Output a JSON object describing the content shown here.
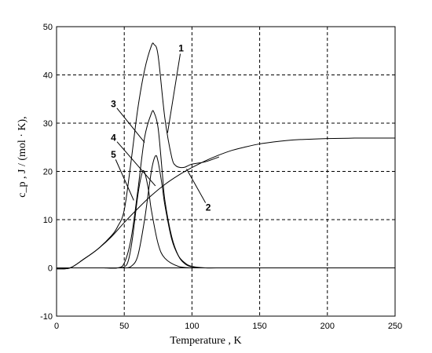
{
  "chart_data": {
    "type": "line",
    "title": "",
    "xlabel": "Temperature ,  K",
    "ylabel": "c_p ,  J / (mol · K),",
    "xlim": [
      0,
      250
    ],
    "ylim": [
      -10,
      50
    ],
    "x_ticks": [
      0,
      50,
      100,
      150,
      200,
      250
    ],
    "y_ticks": [
      -10,
      0,
      10,
      20,
      30,
      40,
      50
    ],
    "grid": true,
    "grid_style": "dashed",
    "legend": "none",
    "line_color": "#000000",
    "series": [
      {
        "label": "1",
        "x": [
          0,
          10,
          20,
          30,
          40,
          45,
          50,
          55,
          60,
          65,
          70,
          72,
          75,
          80,
          85,
          88,
          92,
          95,
          100,
          110,
          120
        ],
        "y": [
          -0.2,
          0,
          1.8,
          3.8,
          6.5,
          8.5,
          12,
          22,
          33,
          41,
          46,
          46.3,
          44,
          31,
          23,
          21.2,
          20.8,
          20.9,
          21.5,
          22,
          23
        ]
      },
      {
        "label": "2",
        "x": [
          0,
          10,
          20,
          30,
          40,
          50,
          60,
          70,
          80,
          90,
          100,
          110,
          120,
          130,
          140,
          150,
          160,
          170,
          180,
          190,
          200,
          210,
          220,
          230,
          240,
          250
        ],
        "y": [
          -0.2,
          0,
          1.8,
          3.8,
          6.3,
          9.4,
          12.3,
          15,
          17.3,
          19.2,
          20.8,
          22.2,
          23.4,
          24.4,
          25.1,
          25.7,
          26.1,
          26.4,
          26.6,
          26.7,
          26.8,
          26.85,
          26.9,
          26.9,
          26.9,
          26.9
        ]
      },
      {
        "label": "3",
        "x": [
          35,
          45,
          50,
          55,
          60,
          65,
          70,
          72,
          75,
          78,
          80,
          85,
          90,
          95,
          100,
          105,
          110
        ],
        "y": [
          0,
          0,
          1,
          6,
          16,
          27,
          32,
          32.2,
          29,
          20,
          14,
          6.5,
          2.5,
          0.8,
          0.2,
          0.05,
          0
        ]
      },
      {
        "label": "4",
        "x": [
          50,
          55,
          60,
          65,
          70,
          73,
          75,
          78,
          80,
          85,
          90,
          95,
          100,
          110,
          120
        ],
        "y": [
          0,
          0.3,
          2.5,
          10,
          20,
          23.2,
          22,
          17,
          13,
          6,
          2.5,
          1,
          0.3,
          0,
          0
        ]
      },
      {
        "label": "5",
        "x": [
          45,
          50,
          53,
          56,
          60,
          63,
          65,
          68,
          70,
          75,
          80,
          90,
          100
        ],
        "y": [
          0,
          0.2,
          1.5,
          6,
          15,
          19.5,
          19.8,
          16,
          12,
          5,
          2,
          0.3,
          0
        ]
      }
    ],
    "annotations": [
      {
        "text": "1",
        "x": 92,
        "y": 45.5,
        "target_x": 82,
        "target_y": 28
      },
      {
        "text": "2",
        "x": 112,
        "y": 12.5,
        "target_x": 96,
        "target_y": 20.5
      },
      {
        "text": "3",
        "x": 42,
        "y": 34,
        "target_x": 65,
        "target_y": 26
      },
      {
        "text": "4",
        "x": 42,
        "y": 27,
        "target_x": 73,
        "target_y": 17
      },
      {
        "text": "5",
        "x": 42,
        "y": 23.5,
        "target_x": 57,
        "target_y": 14
      }
    ]
  }
}
